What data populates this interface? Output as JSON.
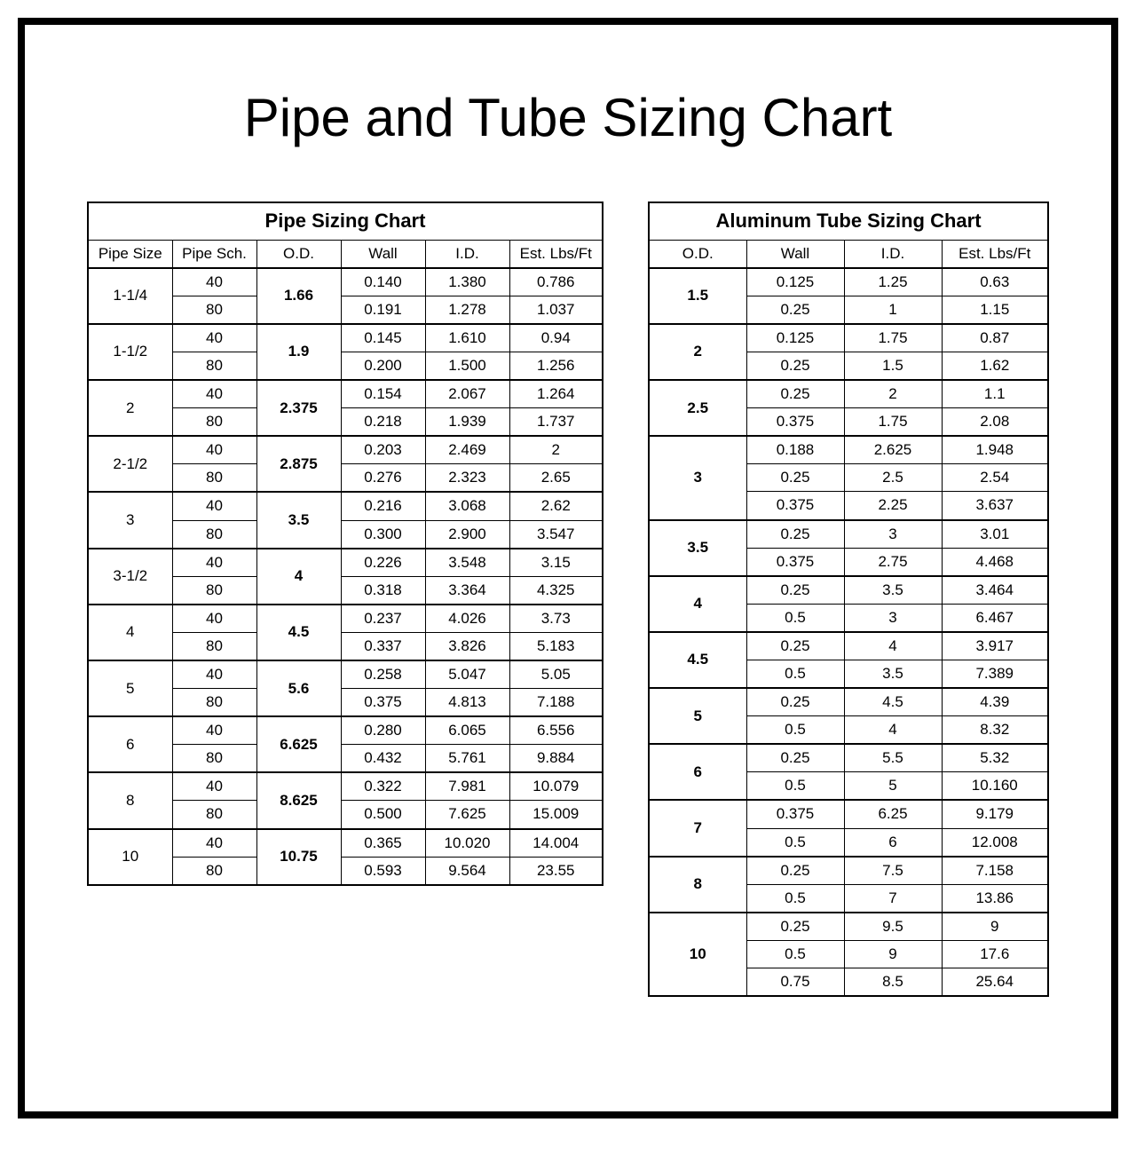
{
  "page": {
    "title": "Pipe and Tube Sizing Chart",
    "title_fontsize": 60,
    "background_color": "#ffffff",
    "border_color": "#000000",
    "text_color": "#000000"
  },
  "pipe_table": {
    "type": "table",
    "title": "Pipe Sizing Chart",
    "columns": [
      "Pipe Size",
      "Pipe Sch.",
      "O.D.",
      "Wall",
      "I.D.",
      "Est. Lbs/Ft"
    ],
    "groups": [
      {
        "size": "1-1/4",
        "od": "1.66",
        "rows": [
          {
            "sch": "40",
            "wall": "0.140",
            "id": "1.380",
            "lbs": "0.786"
          },
          {
            "sch": "80",
            "wall": "0.191",
            "id": "1.278",
            "lbs": "1.037"
          }
        ]
      },
      {
        "size": "1-1/2",
        "od": "1.9",
        "rows": [
          {
            "sch": "40",
            "wall": "0.145",
            "id": "1.610",
            "lbs": "0.94"
          },
          {
            "sch": "80",
            "wall": "0.200",
            "id": "1.500",
            "lbs": "1.256"
          }
        ]
      },
      {
        "size": "2",
        "od": "2.375",
        "rows": [
          {
            "sch": "40",
            "wall": "0.154",
            "id": "2.067",
            "lbs": "1.264"
          },
          {
            "sch": "80",
            "wall": "0.218",
            "id": "1.939",
            "lbs": "1.737"
          }
        ]
      },
      {
        "size": "2-1/2",
        "od": "2.875",
        "rows": [
          {
            "sch": "40",
            "wall": "0.203",
            "id": "2.469",
            "lbs": "2"
          },
          {
            "sch": "80",
            "wall": "0.276",
            "id": "2.323",
            "lbs": "2.65"
          }
        ]
      },
      {
        "size": "3",
        "od": "3.5",
        "rows": [
          {
            "sch": "40",
            "wall": "0.216",
            "id": "3.068",
            "lbs": "2.62"
          },
          {
            "sch": "80",
            "wall": "0.300",
            "id": "2.900",
            "lbs": "3.547"
          }
        ]
      },
      {
        "size": "3-1/2",
        "od": "4",
        "rows": [
          {
            "sch": "40",
            "wall": "0.226",
            "id": "3.548",
            "lbs": "3.15"
          },
          {
            "sch": "80",
            "wall": "0.318",
            "id": "3.364",
            "lbs": "4.325"
          }
        ]
      },
      {
        "size": "4",
        "od": "4.5",
        "rows": [
          {
            "sch": "40",
            "wall": "0.237",
            "id": "4.026",
            "lbs": "3.73"
          },
          {
            "sch": "80",
            "wall": "0.337",
            "id": "3.826",
            "lbs": "5.183"
          }
        ]
      },
      {
        "size": "5",
        "od": "5.6",
        "rows": [
          {
            "sch": "40",
            "wall": "0.258",
            "id": "5.047",
            "lbs": "5.05"
          },
          {
            "sch": "80",
            "wall": "0.375",
            "id": "4.813",
            "lbs": "7.188"
          }
        ]
      },
      {
        "size": "6",
        "od": "6.625",
        "rows": [
          {
            "sch": "40",
            "wall": "0.280",
            "id": "6.065",
            "lbs": "6.556"
          },
          {
            "sch": "80",
            "wall": "0.432",
            "id": "5.761",
            "lbs": "9.884"
          }
        ]
      },
      {
        "size": "8",
        "od": "8.625",
        "rows": [
          {
            "sch": "40",
            "wall": "0.322",
            "id": "7.981",
            "lbs": "10.079"
          },
          {
            "sch": "80",
            "wall": "0.500",
            "id": "7.625",
            "lbs": "15.009"
          }
        ]
      },
      {
        "size": "10",
        "od": "10.75",
        "rows": [
          {
            "sch": "40",
            "wall": "0.365",
            "id": "10.020",
            "lbs": "14.004"
          },
          {
            "sch": "80",
            "wall": "0.593",
            "id": "9.564",
            "lbs": "23.55"
          }
        ]
      }
    ]
  },
  "tube_table": {
    "type": "table",
    "title": "Aluminum Tube Sizing Chart",
    "columns": [
      "O.D.",
      "Wall",
      "I.D.",
      "Est. Lbs/Ft"
    ],
    "groups": [
      {
        "od": "1.5",
        "rows": [
          {
            "wall": "0.125",
            "id": "1.25",
            "lbs": "0.63"
          },
          {
            "wall": "0.25",
            "id": "1",
            "lbs": "1.15"
          }
        ]
      },
      {
        "od": "2",
        "rows": [
          {
            "wall": "0.125",
            "id": "1.75",
            "lbs": "0.87"
          },
          {
            "wall": "0.25",
            "id": "1.5",
            "lbs": "1.62"
          }
        ]
      },
      {
        "od": "2.5",
        "rows": [
          {
            "wall": "0.25",
            "id": "2",
            "lbs": "1.1"
          },
          {
            "wall": "0.375",
            "id": "1.75",
            "lbs": "2.08"
          }
        ]
      },
      {
        "od": "3",
        "rows": [
          {
            "wall": "0.188",
            "id": "2.625",
            "lbs": "1.948"
          },
          {
            "wall": "0.25",
            "id": "2.5",
            "lbs": "2.54"
          },
          {
            "wall": "0.375",
            "id": "2.25",
            "lbs": "3.637"
          }
        ]
      },
      {
        "od": "3.5",
        "rows": [
          {
            "wall": "0.25",
            "id": "3",
            "lbs": "3.01"
          },
          {
            "wall": "0.375",
            "id": "2.75",
            "lbs": "4.468"
          }
        ]
      },
      {
        "od": "4",
        "rows": [
          {
            "wall": "0.25",
            "id": "3.5",
            "lbs": "3.464"
          },
          {
            "wall": "0.5",
            "id": "3",
            "lbs": "6.467"
          }
        ]
      },
      {
        "od": "4.5",
        "rows": [
          {
            "wall": "0.25",
            "id": "4",
            "lbs": "3.917"
          },
          {
            "wall": "0.5",
            "id": "3.5",
            "lbs": "7.389"
          }
        ]
      },
      {
        "od": "5",
        "rows": [
          {
            "wall": "0.25",
            "id": "4.5",
            "lbs": "4.39"
          },
          {
            "wall": "0.5",
            "id": "4",
            "lbs": "8.32"
          }
        ]
      },
      {
        "od": "6",
        "rows": [
          {
            "wall": "0.25",
            "id": "5.5",
            "lbs": "5.32"
          },
          {
            "wall": "0.5",
            "id": "5",
            "lbs": "10.160"
          }
        ]
      },
      {
        "od": "7",
        "rows": [
          {
            "wall": "0.375",
            "id": "6.25",
            "lbs": "9.179"
          },
          {
            "wall": "0.5",
            "id": "6",
            "lbs": "12.008"
          }
        ]
      },
      {
        "od": "8",
        "rows": [
          {
            "wall": "0.25",
            "id": "7.5",
            "lbs": "7.158"
          },
          {
            "wall": "0.5",
            "id": "7",
            "lbs": "13.86"
          }
        ]
      },
      {
        "od": "10",
        "rows": [
          {
            "wall": "0.25",
            "id": "9.5",
            "lbs": "9"
          },
          {
            "wall": "0.5",
            "id": "9",
            "lbs": "17.6"
          },
          {
            "wall": "0.75",
            "id": "8.5",
            "lbs": "25.64"
          }
        ]
      }
    ]
  }
}
